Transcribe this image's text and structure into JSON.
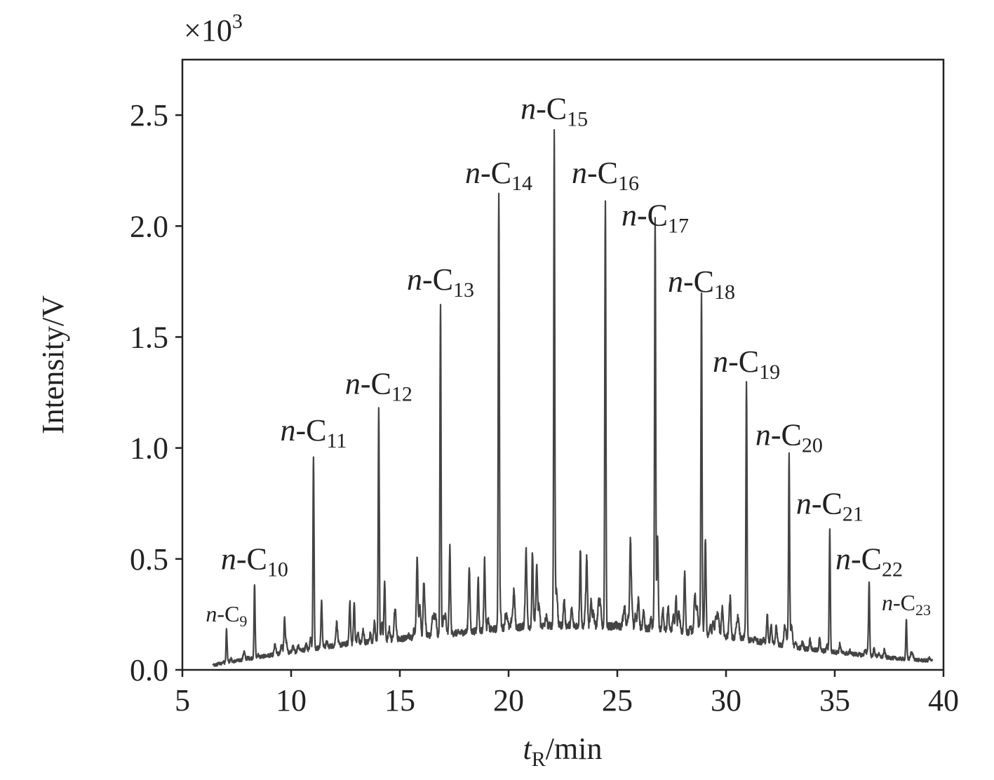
{
  "chart_data": {
    "type": "line",
    "title": "",
    "multiplier_label": "×10",
    "multiplier_exp": "3",
    "xlabel_italic": "t",
    "xlabel_sub": "R",
    "xlabel_rest": "/min",
    "ylabel": "Intensity/V",
    "xlim": [
      5,
      40
    ],
    "ylim": [
      0,
      2.75
    ],
    "xticks": [
      5,
      10,
      15,
      20,
      25,
      30,
      35,
      40
    ],
    "xtick_labels": [
      "5",
      "10",
      "15",
      "20",
      "25",
      "30",
      "35",
      "40"
    ],
    "yticks": [
      0,
      0.5,
      1.0,
      1.5,
      2.0,
      2.5
    ],
    "ytick_labels": [
      "0.0",
      "0.5",
      "1.0",
      "1.5",
      "2.0",
      "2.5"
    ],
    "grid": false,
    "line_color": "#444444",
    "trace_range": [
      6.4,
      39.5
    ],
    "baseline": [
      [
        6.4,
        0.02
      ],
      [
        8,
        0.05
      ],
      [
        10,
        0.08
      ],
      [
        12,
        0.11
      ],
      [
        14,
        0.13
      ],
      [
        16,
        0.15
      ],
      [
        18,
        0.17
      ],
      [
        20,
        0.19
      ],
      [
        22,
        0.2
      ],
      [
        24,
        0.2
      ],
      [
        26,
        0.19
      ],
      [
        28,
        0.17
      ],
      [
        30,
        0.15
      ],
      [
        32,
        0.12
      ],
      [
        34,
        0.09
      ],
      [
        36,
        0.07
      ],
      [
        38,
        0.05
      ],
      [
        39.5,
        0.04
      ]
    ],
    "labeled_peaks": [
      {
        "name": "n-C",
        "sub": "9",
        "t": 7.03,
        "v": 0.18,
        "small": true
      },
      {
        "name": "n-C",
        "sub": "10",
        "t": 8.32,
        "v": 0.39
      },
      {
        "name": "n-C",
        "sub": "11",
        "t": 11.03,
        "v": 0.97
      },
      {
        "name": "n-C",
        "sub": "12",
        "t": 14.03,
        "v": 1.18
      },
      {
        "name": "n-C",
        "sub": "13",
        "t": 16.87,
        "v": 1.65
      },
      {
        "name": "n-C",
        "sub": "14",
        "t": 19.55,
        "v": 2.13
      },
      {
        "name": "n-C",
        "sub": "15",
        "t": 22.1,
        "v": 2.42
      },
      {
        "name": "n-C",
        "sub": "16",
        "t": 24.45,
        "v": 2.13
      },
      {
        "name": "n-C",
        "sub": "17",
        "t": 26.74,
        "v": 1.94
      },
      {
        "name": "n-C",
        "sub": "18",
        "t": 28.87,
        "v": 1.64
      },
      {
        "name": "n-C",
        "sub": "19",
        "t": 30.94,
        "v": 1.28
      },
      {
        "name": "n-C",
        "sub": "20",
        "t": 32.9,
        "v": 0.95
      },
      {
        "name": "n-C",
        "sub": "21",
        "t": 34.77,
        "v": 0.64
      },
      {
        "name": "n-C",
        "sub": "22",
        "t": 36.58,
        "v": 0.39
      },
      {
        "name": "n-C",
        "sub": "23",
        "t": 38.29,
        "v": 0.23,
        "small": true
      }
    ],
    "minor_peaks": [
      [
        9.7,
        0.23
      ],
      [
        11.4,
        0.31
      ],
      [
        12.7,
        0.27
      ],
      [
        12.9,
        0.31
      ],
      [
        14.3,
        0.4
      ],
      [
        15.8,
        0.48
      ],
      [
        16.1,
        0.38
      ],
      [
        17.3,
        0.55
      ],
      [
        18.2,
        0.35
      ],
      [
        18.6,
        0.42
      ],
      [
        18.9,
        0.45
      ],
      [
        20.8,
        0.45
      ],
      [
        21.1,
        0.53
      ],
      [
        21.3,
        0.45
      ],
      [
        23.3,
        0.55
      ],
      [
        23.6,
        0.47
      ],
      [
        25.6,
        0.55
      ],
      [
        26.85,
        0.6
      ],
      [
        27.7,
        0.33
      ],
      [
        28.1,
        0.33
      ],
      [
        29.05,
        0.59
      ],
      [
        30.2,
        0.28
      ],
      [
        31.9,
        0.2
      ],
      [
        32.3,
        0.18
      ],
      [
        34.3,
        0.15
      ]
    ]
  }
}
